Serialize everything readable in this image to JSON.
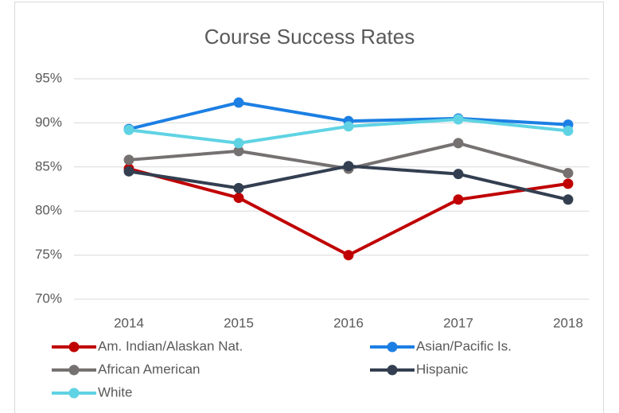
{
  "chart_data": {
    "type": "line",
    "title": "Course Success Rates",
    "categories": [
      "2014",
      "2015",
      "2016",
      "2017",
      "2018"
    ],
    "series": [
      {
        "name": "Am. Indian/Alaskan Nat.",
        "color": "#c00000",
        "values": [
          84.8,
          81.5,
          75.0,
          81.3,
          83.1
        ]
      },
      {
        "name": "Asian/Pacific Is.",
        "color": "#1c7fe3",
        "values": [
          89.3,
          92.3,
          90.2,
          90.5,
          89.8
        ]
      },
      {
        "name": "African American",
        "color": "#767171",
        "values": [
          85.8,
          86.8,
          84.8,
          87.7,
          84.3
        ]
      },
      {
        "name": "Hispanic",
        "color": "#333f50",
        "values": [
          84.5,
          82.6,
          85.1,
          84.2,
          81.3
        ]
      },
      {
        "name": "White",
        "color": "#5fd3e3",
        "values": [
          89.2,
          87.7,
          89.6,
          90.4,
          89.1
        ]
      }
    ],
    "ylim": [
      70,
      95
    ],
    "yticks": [
      {
        "value": 70,
        "label": "70%"
      },
      {
        "value": 75,
        "label": "75%"
      },
      {
        "value": 80,
        "label": "80%"
      },
      {
        "value": 85,
        "label": "85%"
      },
      {
        "value": 90,
        "label": "90%"
      },
      {
        "value": 95,
        "label": "95%"
      }
    ],
    "grid": true,
    "legend": "bottom"
  }
}
